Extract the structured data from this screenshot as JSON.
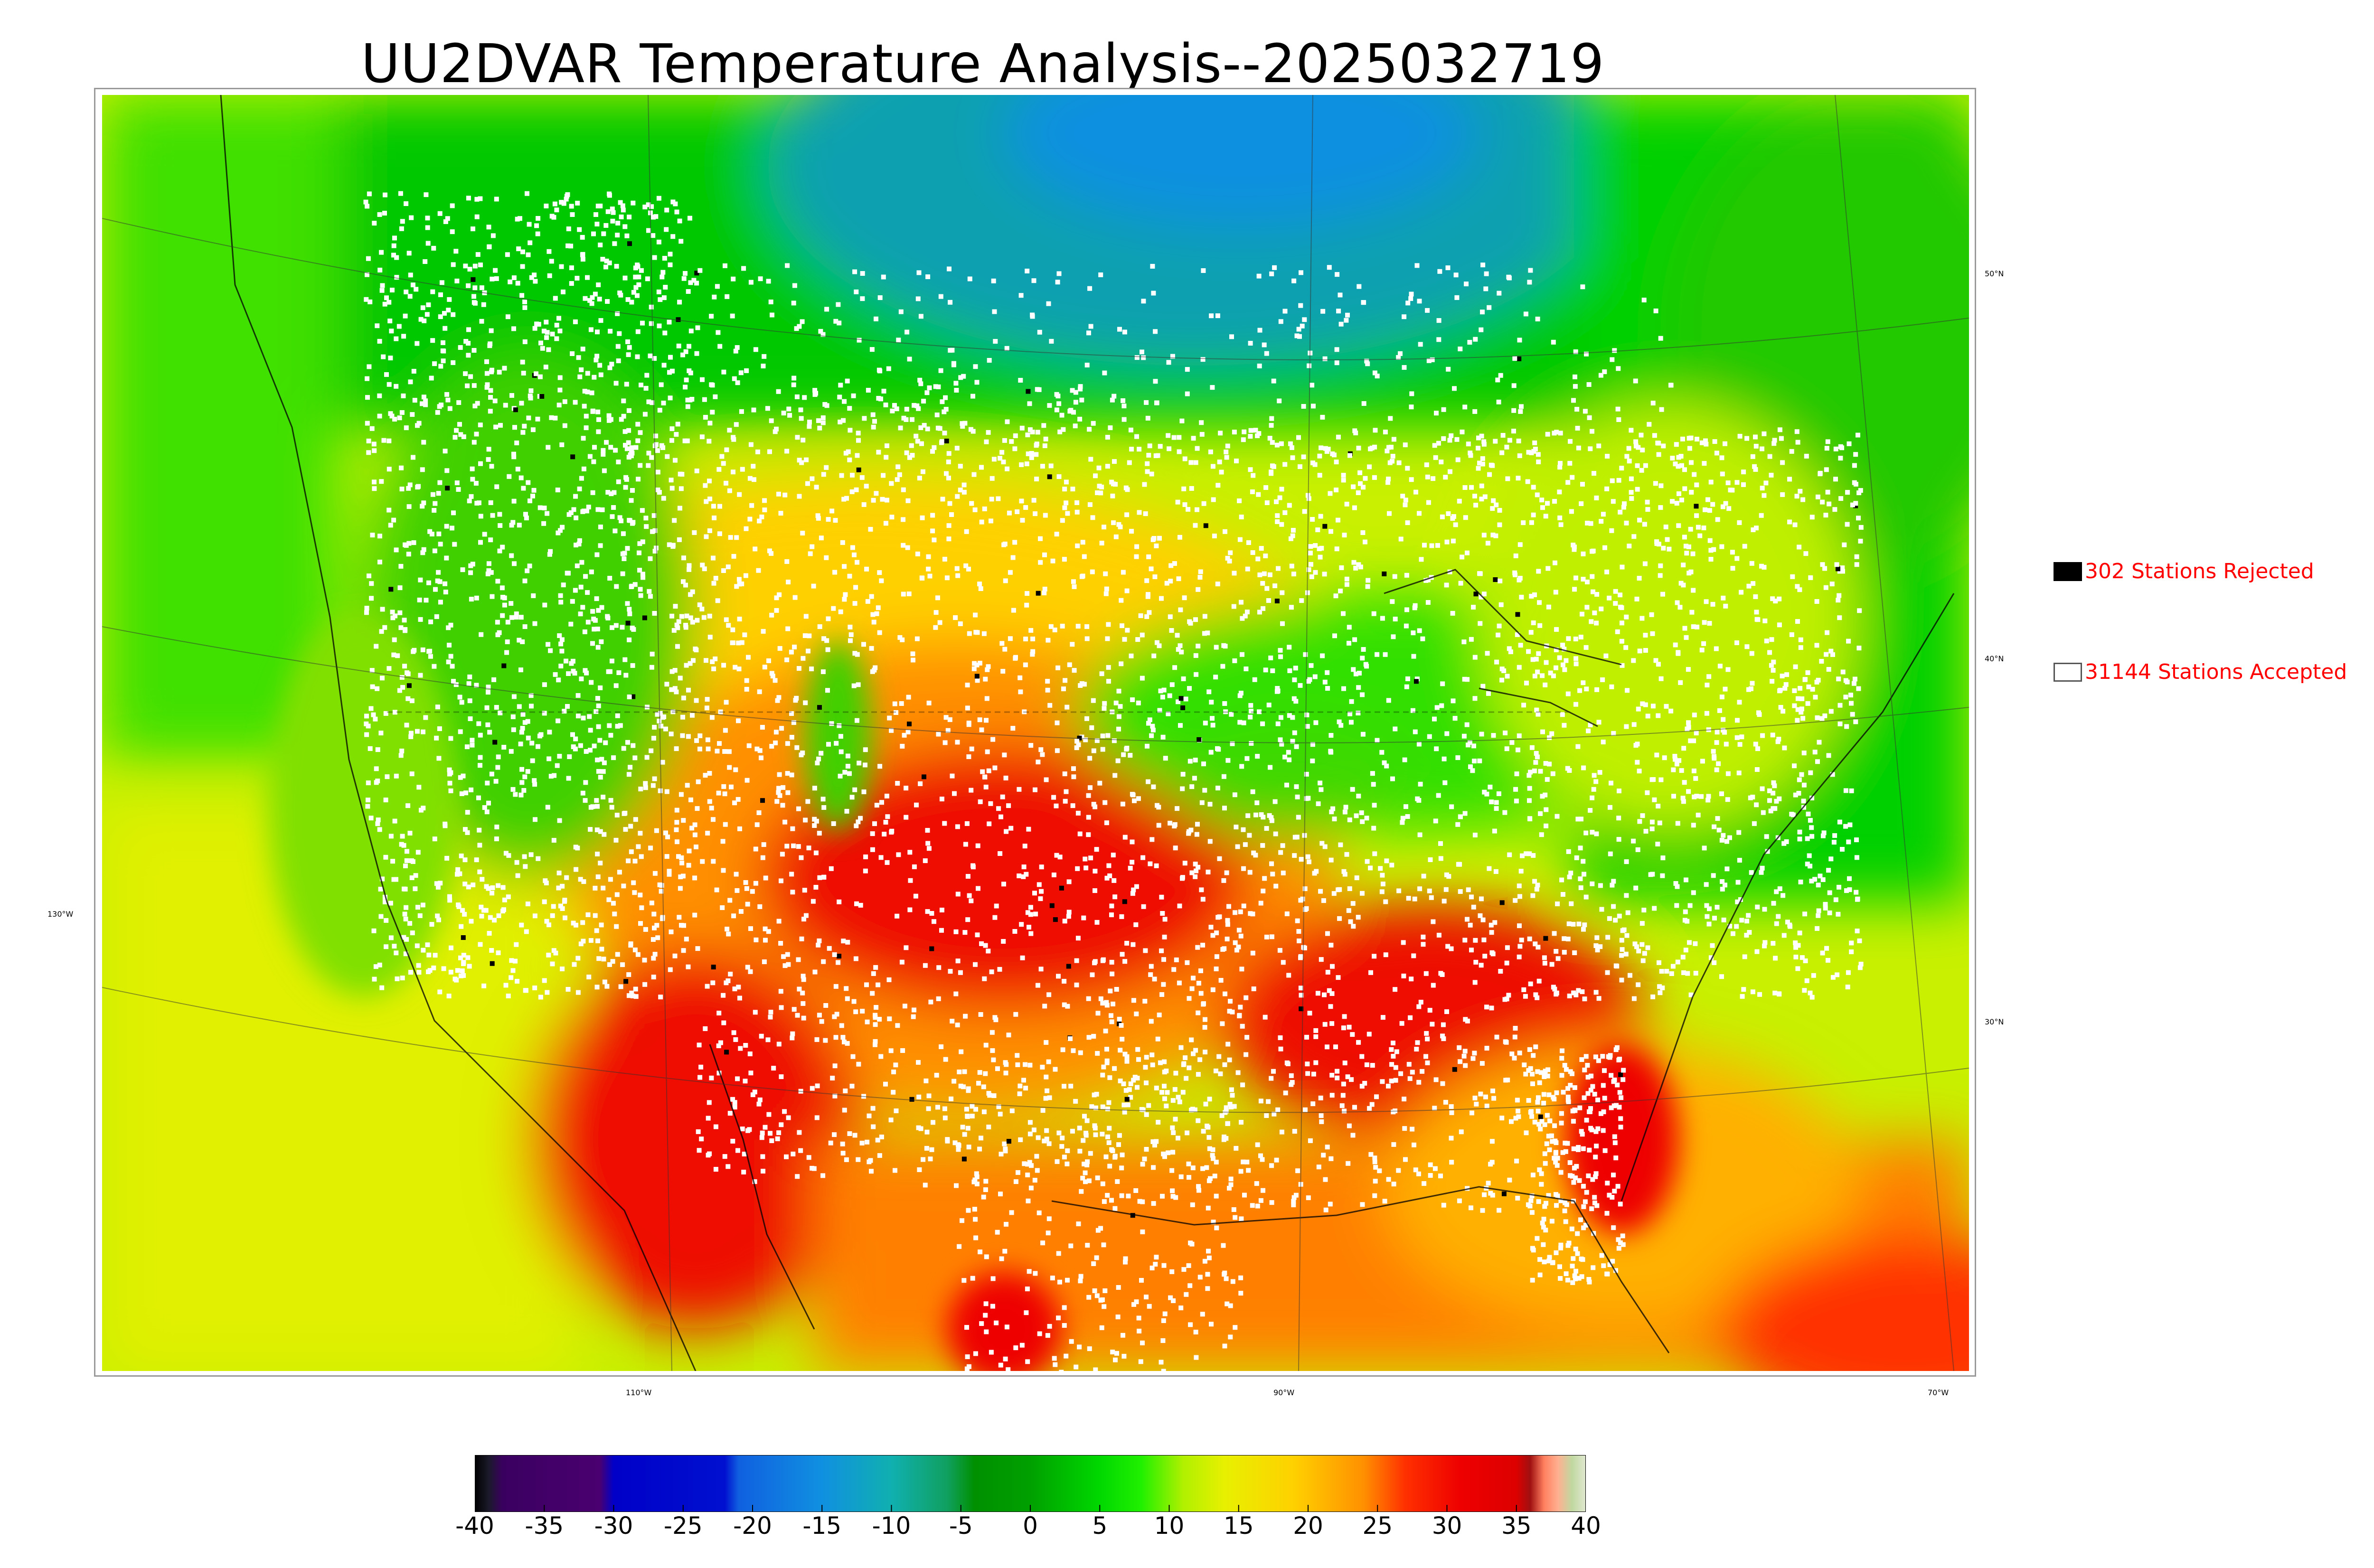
{
  "title": "UU2DVAR Temperature Analysis--2025032719",
  "latitude_labels": [
    "50°N",
    "40°N",
    "30°N"
  ],
  "longitude_labels": [
    "110°W",
    "90°W",
    "70°W"
  ],
  "west_label": "130°W",
  "legend": {
    "rejected": {
      "text": "302 Stations Rejected",
      "swatch_color": "#000000"
    },
    "accepted": {
      "text": "31144 Stations Accepted",
      "swatch_color": "#ffffff"
    }
  },
  "colorbar": {
    "min": -40,
    "max": 40,
    "ticks": [
      "-40",
      "-35",
      "-30",
      "-25",
      "-20",
      "-15",
      "-10",
      "-5",
      "0",
      "5",
      "10",
      "15",
      "20",
      "25",
      "30",
      "35",
      "40"
    ],
    "stops": [
      {
        "v": -40,
        "c": "#000000"
      },
      {
        "v": -39,
        "c": "#1a1a2a"
      },
      {
        "v": -38,
        "c": "#3a0060"
      },
      {
        "v": -31,
        "c": "#4a0070"
      },
      {
        "v": -30,
        "c": "#0000c8"
      },
      {
        "v": -22,
        "c": "#0010d0"
      },
      {
        "v": -21,
        "c": "#1060e0"
      },
      {
        "v": -15,
        "c": "#1090e0"
      },
      {
        "v": -10,
        "c": "#10b0b0"
      },
      {
        "v": -6,
        "c": "#10a060"
      },
      {
        "v": -4,
        "c": "#009000"
      },
      {
        "v": 0,
        "c": "#00a000"
      },
      {
        "v": 5,
        "c": "#00d800"
      },
      {
        "v": 8,
        "c": "#20f000"
      },
      {
        "v": 11,
        "c": "#b0f000"
      },
      {
        "v": 14,
        "c": "#e8f000"
      },
      {
        "v": 19,
        "c": "#ffd000"
      },
      {
        "v": 24,
        "c": "#ff9000"
      },
      {
        "v": 27,
        "c": "#ff3000"
      },
      {
        "v": 31,
        "c": "#ee0000"
      },
      {
        "v": 35,
        "c": "#dd0000"
      },
      {
        "v": 36,
        "c": "#a01010"
      },
      {
        "v": 37,
        "c": "#ff8060"
      },
      {
        "v": 38,
        "c": "#ffb090"
      },
      {
        "v": 39,
        "c": "#c0d8a0"
      },
      {
        "v": 40,
        "c": "#e0e8d0"
      }
    ]
  }
}
